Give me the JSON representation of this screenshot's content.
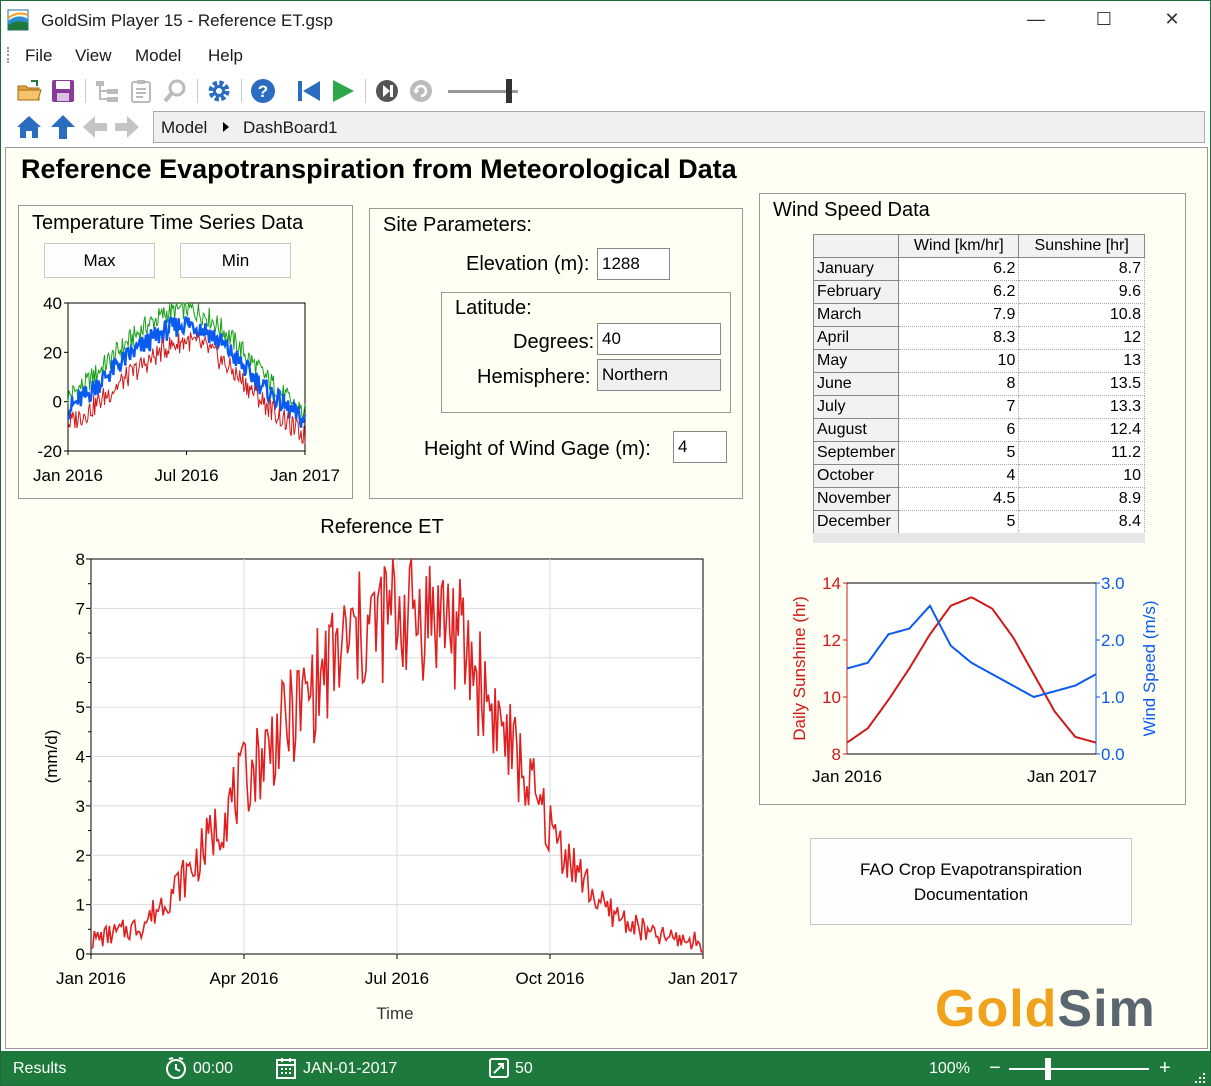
{
  "window": {
    "title": "GoldSim Player 15  - Reference ET.gsp",
    "minimize_glyph": "—",
    "maximize_glyph": "☐",
    "close_glyph": "✕"
  },
  "menu": {
    "items": [
      "File",
      "View",
      "Model",
      "Help"
    ]
  },
  "toolbar": {
    "icons": [
      "open-folder-icon",
      "save-icon",
      "tree-view-icon",
      "clipboard-icon",
      "search-icon",
      "settings-gear-icon",
      "help-icon",
      "rewind-icon",
      "play-icon",
      "step-forward-icon",
      "refresh-icon"
    ]
  },
  "nav": {
    "breadcrumb": [
      "Model",
      "DashBoard1"
    ]
  },
  "dashboard": {
    "title": "Reference Evapotranspiration from Meteorological Data",
    "temperature": {
      "title": "Temperature Time Series Data",
      "max_label": "Max",
      "min_label": "Min"
    },
    "site": {
      "title": "Site Parameters:",
      "elevation_label": "Elevation (m):",
      "elevation_value": "1288",
      "latitude_title": "Latitude:",
      "degrees_label": "Degrees:",
      "degrees_value": "40",
      "hemisphere_label": "Hemisphere:",
      "hemisphere_value": "Northern",
      "wind_gage_label": "Height of Wind Gage (m):",
      "wind_gage_value": "4"
    },
    "wind": {
      "title": "Wind Speed Data",
      "col_wind": "Wind [km/hr]",
      "col_sun": "Sunshine [hr]",
      "rows": [
        {
          "month": "January",
          "wind": "6.2",
          "sun": "8.7"
        },
        {
          "month": "February",
          "wind": "6.2",
          "sun": "9.6"
        },
        {
          "month": "March",
          "wind": "7.9",
          "sun": "10.8"
        },
        {
          "month": "April",
          "wind": "8.3",
          "sun": "12"
        },
        {
          "month": "May",
          "wind": "10",
          "sun": "13"
        },
        {
          "month": "June",
          "wind": "8",
          "sun": "13.5"
        },
        {
          "month": "July",
          "wind": "7",
          "sun": "13.3"
        },
        {
          "month": "August",
          "wind": "6",
          "sun": "12.4"
        },
        {
          "month": "September",
          "wind": "5",
          "sun": "11.2"
        },
        {
          "month": "October",
          "wind": "4",
          "sun": "10"
        },
        {
          "month": "November",
          "wind": "4.5",
          "sun": "8.9"
        },
        {
          "month": "December",
          "wind": "5",
          "sun": "8.4"
        }
      ]
    },
    "fao_button": "FAO Crop Evapotranspiration Documentation",
    "logo_gold": "Gold",
    "logo_sim": "Sim"
  },
  "status": {
    "mode": "Results",
    "clock": "00:00",
    "date": "JAN-01-2017",
    "steps": "50",
    "zoom": "100%",
    "zoom_minus": "−",
    "zoom_plus": "+"
  },
  "chart_data": [
    {
      "type": "line",
      "title": "",
      "x": [
        "Jan 2016",
        "Feb 2016",
        "Mar 2016",
        "Apr 2016",
        "May 2016",
        "Jun 2016",
        "Jul 2016",
        "Aug 2016",
        "Sep 2016",
        "Oct 2016",
        "Nov 2016",
        "Dec 2016",
        "Jan 2017"
      ],
      "xticks": [
        "Jan 2016",
        "Jul 2016",
        "Jan 2017"
      ],
      "ylim": [
        -20,
        40
      ],
      "yticks": [
        -20,
        0,
        20,
        40
      ],
      "series": [
        {
          "color": "#1aa01a",
          "values": [
            2,
            8,
            16,
            24,
            31,
            36,
            38,
            35,
            28,
            19,
            10,
            2,
            -5
          ]
        },
        {
          "color": "#0a5af0",
          "values": [
            -3,
            3,
            11,
            18,
            24,
            29,
            32,
            29,
            22,
            13,
            5,
            -2,
            -8
          ]
        },
        {
          "color": "#d01818",
          "values": [
            -9,
            -4,
            3,
            10,
            16,
            22,
            25,
            22,
            15,
            7,
            -1,
            -8,
            -14
          ]
        }
      ],
      "grid": false
    },
    {
      "type": "line",
      "title": "Reference ET",
      "xlabel": "Time",
      "ylabel": "(mm/d)",
      "x": [
        "Jan 2016",
        "Feb 2016",
        "Mar 2016",
        "Apr 2016",
        "May 2016",
        "Jun 2016",
        "Jul 2016",
        "Aug 2016",
        "Sep 2016",
        "Oct 2016",
        "Nov 2016",
        "Dec 2016",
        "Jan 2017"
      ],
      "xticks": [
        "Jan 2016",
        "Apr 2016",
        "Jul 2016",
        "Oct 2016",
        "Jan 2017"
      ],
      "ylim": [
        0,
        8
      ],
      "yticks": [
        0,
        1,
        2,
        3,
        4,
        5,
        6,
        7,
        8
      ],
      "series": [
        {
          "color": "#e02020",
          "values": [
            0.3,
            0.6,
            1.8,
            3.6,
            5.0,
            6.4,
            7.1,
            7.0,
            4.8,
            2.6,
            1.0,
            0.4,
            0.25
          ]
        }
      ],
      "grid": true
    },
    {
      "type": "line",
      "title": "",
      "x": [
        "Jan 2016",
        "Feb 2016",
        "Mar 2016",
        "Apr 2016",
        "May 2016",
        "Jun 2016",
        "Jul 2016",
        "Aug 2016",
        "Sep 2016",
        "Oct 2016",
        "Nov 2016",
        "Dec 2016",
        "Jan 2017"
      ],
      "xticks": [
        "Jan 2016",
        "Jan 2017"
      ],
      "ylabel": "Daily Sunshine (hr)",
      "y2label": "Wind Speed (m/s)",
      "ylim": [
        8,
        14
      ],
      "yticks": [
        8,
        10,
        12,
        14
      ],
      "y2lim": [
        0.0,
        3.0
      ],
      "y2ticks": [
        "0.0",
        "1.0",
        "2.0",
        "3.0"
      ],
      "series": [
        {
          "color": "#d01818",
          "axis": "left",
          "values": [
            8.4,
            8.9,
            9.9,
            11.0,
            12.2,
            13.2,
            13.5,
            13.1,
            12.1,
            10.8,
            9.5,
            8.6,
            8.4
          ]
        },
        {
          "color": "#0a5af0",
          "axis": "right",
          "values": [
            1.5,
            1.6,
            2.1,
            2.2,
            2.6,
            1.9,
            1.6,
            1.4,
            1.2,
            1.0,
            1.1,
            1.2,
            1.4
          ]
        }
      ],
      "grid": false
    }
  ]
}
